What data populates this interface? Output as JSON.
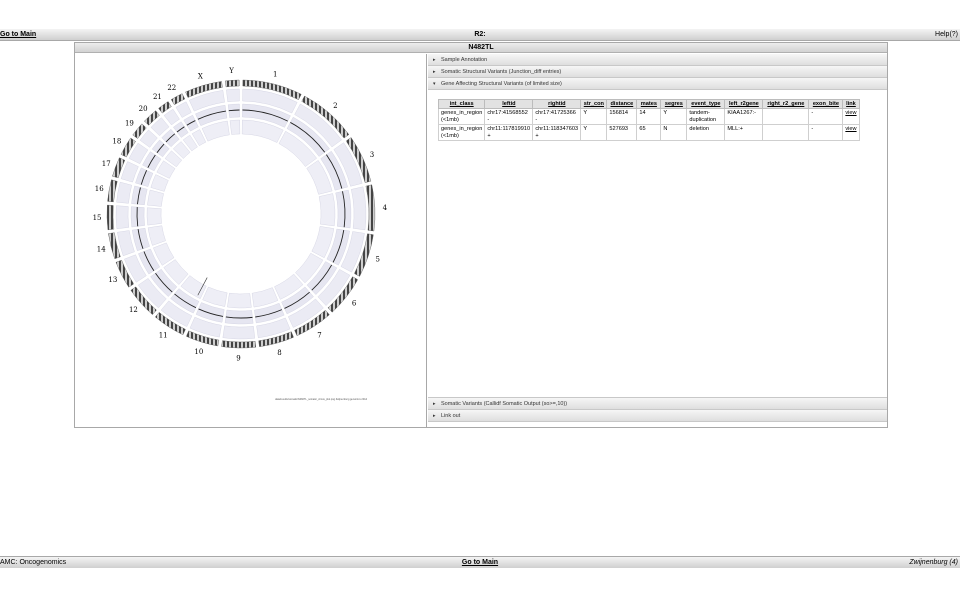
{
  "topbar": {
    "main_link": "Go to Main",
    "title": "R2:",
    "help": "Help(?)"
  },
  "panel": {
    "title": "N482TL"
  },
  "accordions": [
    {
      "label": "Sample Annotation",
      "open": false
    },
    {
      "label": "Somatic Structural Variants (Junction_diff entries)",
      "open": false
    },
    {
      "label": "Gene Affecting Structural Variants (of limited size)",
      "open": true
    },
    {
      "label": "Somatic Variants (Callidf Somatic Output (so>=,10))",
      "open": false
    },
    {
      "label": "Link out",
      "open": false
    }
  ],
  "table": {
    "headers": [
      "int_class",
      "leftid",
      "rightid",
      "str_con",
      "distance",
      "mates",
      "segres",
      "event_type",
      "left_r2gene",
      "right_r2_gene",
      "exon_bite",
      "link"
    ],
    "rows": [
      [
        "genes_in_region (<1mb)",
        "chr17:41568552 -",
        "chr17:41725366 -",
        "Y",
        "156814",
        "14",
        "Y",
        "tandem-duplication",
        "KIAA1267:-",
        "",
        "-",
        "view"
      ],
      [
        "genes_in_region (<1mb)",
        "chr11:117819910 +",
        "chr11:118347603 +",
        "Y",
        "527693",
        "65",
        "N",
        "deletion",
        "MLL:+",
        "",
        "-",
        "view"
      ]
    ]
  },
  "circos": {
    "chromosomes": [
      "1",
      "2",
      "3",
      "4",
      "5",
      "6",
      "7",
      "8",
      "9",
      "10",
      "11",
      "12",
      "13",
      "14",
      "15",
      "16",
      "17",
      "18",
      "19",
      "20",
      "21",
      "22",
      "X",
      "Y"
    ],
    "footer": "data/results/somatic/N482TL_somatic_circos_plot.png  Zwijnenburg genomics 2014"
  },
  "bottombar": {
    "left": "AMC: Oncogenomics",
    "center": "Go to Main",
    "right": "Zwijnenburg (4)"
  }
}
